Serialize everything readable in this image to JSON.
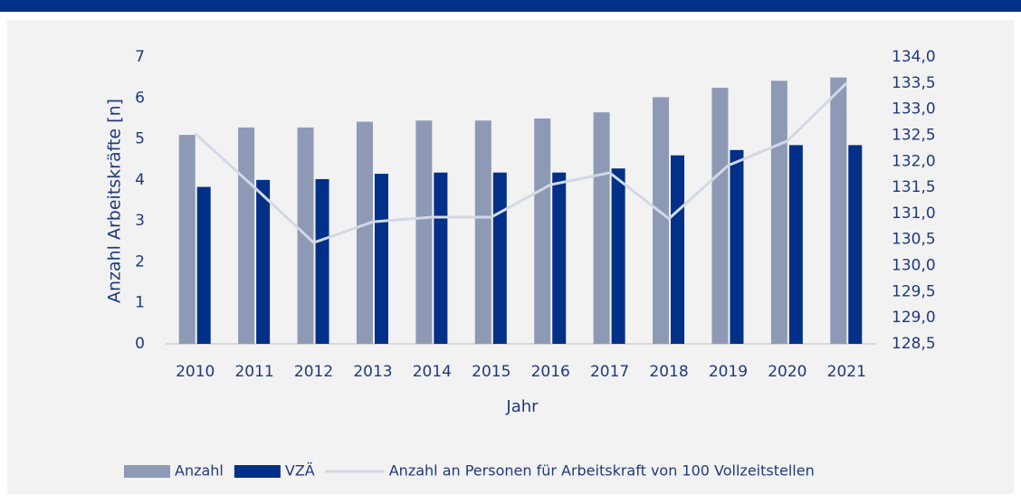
{
  "chart_data": {
    "type": "bar",
    "categories": [
      "2010",
      "2011",
      "2012",
      "2013",
      "2014",
      "2015",
      "2016",
      "2017",
      "2018",
      "2019",
      "2020",
      "2021"
    ],
    "series": [
      {
        "name": "Anzahl",
        "color": "#8e9ab5",
        "values": [
          5.1,
          5.28,
          5.28,
          5.42,
          5.45,
          5.45,
          5.5,
          5.65,
          6.02,
          6.25,
          6.42,
          6.5
        ]
      },
      {
        "name": "VZÄ",
        "color": "#003087",
        "values": [
          3.83,
          4.0,
          4.02,
          4.15,
          4.18,
          4.18,
          4.18,
          4.28,
          4.6,
          4.73,
          4.85,
          4.85
        ]
      },
      {
        "name": "Anzahl an Personen für Arbeitskraft von 100 Vollzeitstellen",
        "color": "#d3d8e6",
        "type": "line",
        "axis": "y2",
        "values": [
          132.53,
          131.5,
          130.44,
          130.84,
          130.93,
          130.93,
          131.55,
          131.78,
          130.9,
          131.92,
          132.39,
          133.5
        ]
      }
    ],
    "xlabel": "Jahr",
    "ylabel": "Anzahl Arbeitskräfte [n]",
    "ylim": [
      0,
      7
    ],
    "yticks": [
      0,
      1,
      2,
      3,
      4,
      5,
      6,
      7
    ],
    "y2lim": [
      128.5,
      134
    ],
    "y2ticks": [
      {
        "value": 128.5,
        "label": "128,5"
      },
      {
        "value": 129,
        "label": "129,0"
      },
      {
        "value": 129.5,
        "label": "129,5"
      },
      {
        "value": 130,
        "label": "130,0"
      },
      {
        "value": 130.5,
        "label": "130,5"
      },
      {
        "value": 131,
        "label": "131,0"
      },
      {
        "value": 131.5,
        "label": "131,5"
      },
      {
        "value": 132,
        "label": "132,0"
      },
      {
        "value": 132.5,
        "label": "132,5"
      },
      {
        "value": 133,
        "label": "133,0"
      },
      {
        "value": 133.5,
        "label": "133,5"
      },
      {
        "value": 134,
        "label": "134,0"
      }
    ],
    "legend": "bottom"
  }
}
